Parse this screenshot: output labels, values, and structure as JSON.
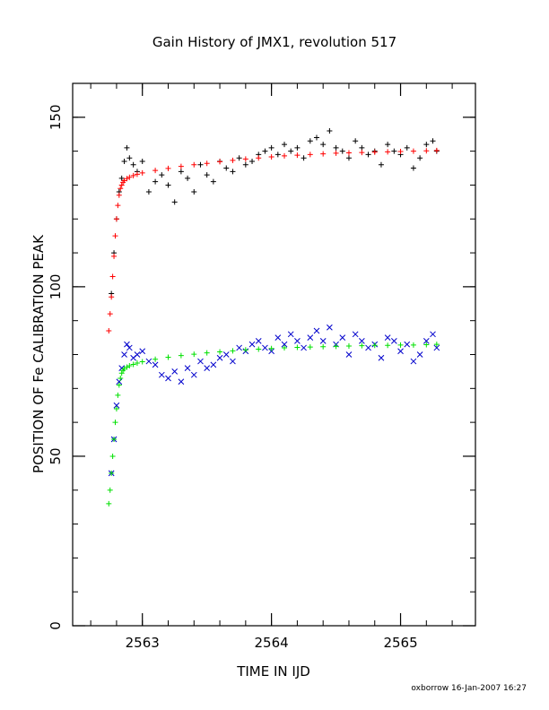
{
  "chart_data": {
    "type": "scatter",
    "title": "Gain History of JMX1, revolution 517",
    "xlabel": "TIME IN IJD",
    "ylabel": "POSITION OF Fe CALIBRATION PEAK",
    "xlim": [
      2562.46,
      2565.58
    ],
    "ylim": [
      0,
      160
    ],
    "x_ticks": [
      2563,
      2564,
      2565
    ],
    "y_ticks": [
      0,
      50,
      100,
      150
    ],
    "x_tick_labels": [
      "2563",
      "2564",
      "2565"
    ],
    "y_tick_labels": [
      "0",
      "50",
      "100",
      "150"
    ],
    "x_minor_step": 0.2,
    "y_minor_step": 10,
    "grid": false,
    "series": [
      {
        "marker": "+",
        "color": "#000000",
        "description_role": "upper measured",
        "x": [
          2562.76,
          2562.78,
          2562.8,
          2562.82,
          2562.84,
          2562.86,
          2562.88,
          2562.9,
          2562.93,
          2562.96,
          2563.0,
          2563.05,
          2563.1,
          2563.15,
          2563.2,
          2563.25,
          2563.3,
          2563.35,
          2563.4,
          2563.45,
          2563.5,
          2563.55,
          2563.6,
          2563.65,
          2563.7,
          2563.75,
          2563.8,
          2563.85,
          2563.9,
          2563.95,
          2564.0,
          2564.05,
          2564.1,
          2564.15,
          2564.2,
          2564.25,
          2564.3,
          2564.35,
          2564.4,
          2564.45,
          2564.5,
          2564.55,
          2564.6,
          2564.65,
          2564.7,
          2564.75,
          2564.8,
          2564.85,
          2564.9,
          2564.95,
          2565.0,
          2565.05,
          2565.1,
          2565.15,
          2565.2,
          2565.25,
          2565.28
        ],
        "y": [
          98,
          110,
          120,
          128,
          132,
          137,
          141,
          138,
          136,
          134,
          137,
          128,
          131,
          133,
          130,
          125,
          134,
          132,
          128,
          136,
          133,
          131,
          137,
          135,
          134,
          138,
          136,
          137,
          139,
          140,
          141,
          139,
          142,
          140,
          141,
          138,
          143,
          144,
          142,
          146,
          141,
          140,
          138,
          143,
          141,
          139,
          140,
          136,
          142,
          140,
          139,
          141,
          135,
          138,
          142,
          143,
          140
        ]
      },
      {
        "marker": "+",
        "color": "#ff0000",
        "description_role": "upper fit",
        "x": [
          2562.74,
          2562.75,
          2562.76,
          2562.77,
          2562.78,
          2562.79,
          2562.8,
          2562.81,
          2562.82,
          2562.83,
          2562.84,
          2562.85,
          2562.86,
          2562.88,
          2562.9,
          2562.93,
          2562.96,
          2563.0,
          2563.1,
          2563.2,
          2563.3,
          2563.4,
          2563.5,
          2563.6,
          2563.7,
          2563.8,
          2563.9,
          2564.0,
          2564.1,
          2564.2,
          2564.3,
          2564.4,
          2564.5,
          2564.6,
          2564.7,
          2564.8,
          2564.9,
          2565.0,
          2565.1,
          2565.2,
          2565.28
        ],
        "y": [
          87,
          92,
          97,
          103,
          109,
          115,
          120,
          124,
          127,
          129,
          130,
          130.8,
          131.3,
          131.9,
          132.3,
          132.8,
          133.2,
          133.6,
          134.3,
          134.9,
          135.5,
          136,
          136.4,
          136.9,
          137.3,
          137.7,
          138,
          138.3,
          138.6,
          138.8,
          139,
          139.2,
          139.4,
          139.5,
          139.6,
          139.7,
          139.8,
          139.9,
          140,
          140.1,
          140.2
        ]
      },
      {
        "marker": "x",
        "color": "#0000cc",
        "description_role": "lower measured",
        "x": [
          2562.76,
          2562.78,
          2562.8,
          2562.82,
          2562.84,
          2562.86,
          2562.88,
          2562.9,
          2562.93,
          2562.96,
          2563.0,
          2563.05,
          2563.1,
          2563.15,
          2563.2,
          2563.25,
          2563.3,
          2563.35,
          2563.4,
          2563.45,
          2563.5,
          2563.55,
          2563.6,
          2563.65,
          2563.7,
          2563.75,
          2563.8,
          2563.85,
          2563.9,
          2563.95,
          2564.0,
          2564.05,
          2564.1,
          2564.15,
          2564.2,
          2564.25,
          2564.3,
          2564.35,
          2564.4,
          2564.45,
          2564.5,
          2564.55,
          2564.6,
          2564.65,
          2564.7,
          2564.75,
          2564.8,
          2564.85,
          2564.9,
          2564.95,
          2565.0,
          2565.05,
          2565.1,
          2565.15,
          2565.2,
          2565.25,
          2565.28
        ],
        "y": [
          45,
          55,
          65,
          72,
          76,
          80,
          83,
          82,
          79,
          80,
          81,
          78,
          77,
          74,
          73,
          75,
          72,
          76,
          74,
          78,
          76,
          77,
          79,
          80,
          78,
          82,
          81,
          83,
          84,
          82,
          81,
          85,
          83,
          86,
          84,
          82,
          85,
          87,
          84,
          88,
          83,
          85,
          80,
          86,
          84,
          82,
          83,
          79,
          85,
          84,
          81,
          83,
          78,
          80,
          84,
          86,
          82
        ]
      },
      {
        "marker": "+",
        "color": "#00e000",
        "description_role": "lower fit",
        "x": [
          2562.74,
          2562.75,
          2562.76,
          2562.77,
          2562.78,
          2562.79,
          2562.8,
          2562.81,
          2562.82,
          2562.83,
          2562.84,
          2562.85,
          2562.86,
          2562.88,
          2562.9,
          2562.93,
          2562.96,
          2563.0,
          2563.1,
          2563.2,
          2563.3,
          2563.4,
          2563.5,
          2563.6,
          2563.7,
          2563.8,
          2563.9,
          2564.0,
          2564.1,
          2564.2,
          2564.3,
          2564.4,
          2564.5,
          2564.6,
          2564.7,
          2564.8,
          2564.9,
          2565.0,
          2565.1,
          2565.2,
          2565.28
        ],
        "y": [
          36,
          40,
          45,
          50,
          55,
          60,
          64,
          68,
          71,
          73,
          74.5,
          75.3,
          75.8,
          76.3,
          76.7,
          77.1,
          77.5,
          77.9,
          78.6,
          79.2,
          79.7,
          80.1,
          80.5,
          80.8,
          81.1,
          81.4,
          81.6,
          81.8,
          82,
          82.1,
          82.2,
          82.3,
          82.4,
          82.5,
          82.6,
          82.7,
          82.7,
          82.8,
          82.8,
          82.9,
          83
        ]
      }
    ]
  },
  "footer": {
    "credit": "oxborrow 16-Jan-2007 16:27"
  }
}
